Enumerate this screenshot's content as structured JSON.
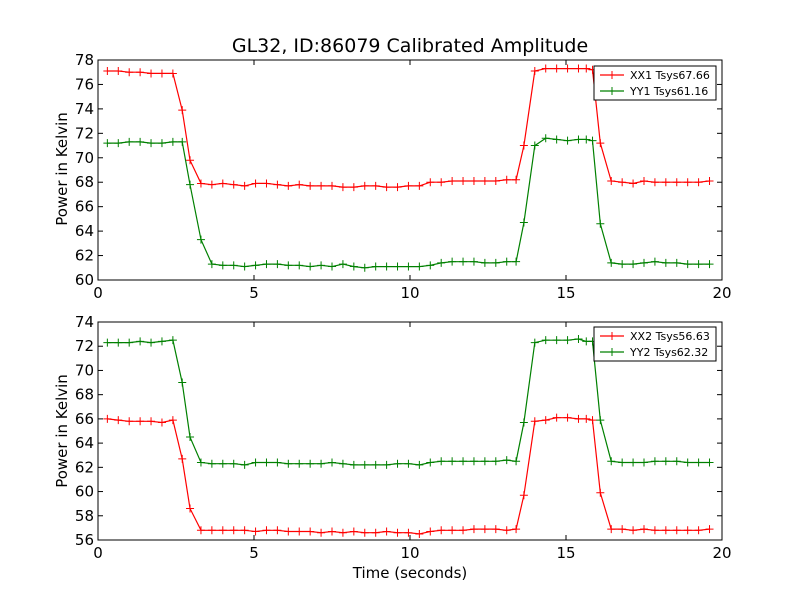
{
  "chart_data": [
    {
      "type": "line",
      "title": "GL32, ID:86079 Calibrated Amplitude",
      "xlabel": "",
      "ylabel": "Power in Kelvin",
      "xlim": [
        0,
        20
      ],
      "ylim": [
        60,
        78
      ],
      "xticks": [
        "0",
        "5",
        "10",
        "15",
        "20"
      ],
      "yticks": [
        "60",
        "62",
        "64",
        "66",
        "68",
        "70",
        "72",
        "74",
        "76",
        "78"
      ],
      "legend_position": "top-right",
      "x": [
        0.3,
        0.65,
        1.0,
        1.35,
        1.7,
        2.05,
        2.4,
        2.7,
        2.95,
        3.3,
        3.65,
        4.0,
        4.35,
        4.7,
        5.05,
        5.4,
        5.75,
        6.1,
        6.45,
        6.8,
        7.15,
        7.5,
        7.85,
        8.2,
        8.55,
        8.9,
        9.25,
        9.6,
        9.95,
        10.3,
        10.65,
        11.0,
        11.35,
        11.7,
        12.05,
        12.4,
        12.75,
        13.1,
        13.4,
        13.65,
        14.0,
        14.35,
        14.7,
        15.05,
        15.4,
        15.65,
        15.85,
        16.1,
        16.45,
        16.8,
        17.15,
        17.5,
        17.85,
        18.2,
        18.55,
        18.9,
        19.25,
        19.6
      ],
      "series": [
        {
          "name": "XX1 Tsys67.66",
          "color": "#ff0000",
          "values": [
            77.1,
            77.1,
            77.0,
            77.0,
            76.9,
            76.9,
            76.9,
            73.9,
            69.8,
            67.9,
            67.8,
            67.9,
            67.8,
            67.7,
            67.9,
            67.9,
            67.8,
            67.7,
            67.8,
            67.7,
            67.7,
            67.7,
            67.6,
            67.6,
            67.7,
            67.7,
            67.6,
            67.6,
            67.7,
            67.7,
            68.0,
            68.0,
            68.1,
            68.1,
            68.1,
            68.1,
            68.1,
            68.2,
            68.2,
            71.0,
            77.1,
            77.3,
            77.3,
            77.3,
            77.3,
            77.3,
            77.2,
            71.2,
            68.1,
            68.0,
            67.9,
            68.1,
            68.0,
            68.0,
            68.0,
            68.0,
            68.0,
            68.1
          ]
        },
        {
          "name": "YY1 Tsys61.16",
          "color": "#008000",
          "values": [
            71.2,
            71.2,
            71.3,
            71.3,
            71.2,
            71.2,
            71.3,
            71.3,
            67.8,
            63.3,
            61.3,
            61.2,
            61.2,
            61.1,
            61.2,
            61.3,
            61.3,
            61.2,
            61.2,
            61.1,
            61.2,
            61.1,
            61.3,
            61.1,
            61.0,
            61.1,
            61.1,
            61.1,
            61.1,
            61.1,
            61.2,
            61.4,
            61.5,
            61.5,
            61.5,
            61.4,
            61.4,
            61.5,
            61.5,
            64.7,
            71.0,
            71.6,
            71.5,
            71.4,
            71.5,
            71.5,
            71.4,
            64.6,
            61.4,
            61.3,
            61.3,
            61.4,
            61.5,
            61.4,
            61.4,
            61.3,
            61.3,
            61.3
          ]
        }
      ]
    },
    {
      "type": "line",
      "title": "",
      "xlabel": "Time (seconds)",
      "ylabel": "Power in Kelvin",
      "xlim": [
        0,
        20
      ],
      "ylim": [
        56,
        74
      ],
      "xticks": [
        "0",
        "5",
        "10",
        "15",
        "20"
      ],
      "yticks": [
        "56",
        "58",
        "60",
        "62",
        "64",
        "66",
        "68",
        "70",
        "72",
        "74"
      ],
      "legend_position": "top-right",
      "x": [
        0.3,
        0.65,
        1.0,
        1.35,
        1.7,
        2.05,
        2.4,
        2.7,
        2.95,
        3.3,
        3.65,
        4.0,
        4.35,
        4.7,
        5.05,
        5.4,
        5.75,
        6.1,
        6.45,
        6.8,
        7.15,
        7.5,
        7.85,
        8.2,
        8.55,
        8.9,
        9.25,
        9.6,
        9.95,
        10.3,
        10.65,
        11.0,
        11.35,
        11.7,
        12.05,
        12.4,
        12.75,
        13.1,
        13.4,
        13.65,
        14.0,
        14.35,
        14.7,
        15.05,
        15.4,
        15.65,
        15.85,
        16.1,
        16.45,
        16.8,
        17.15,
        17.5,
        17.85,
        18.2,
        18.55,
        18.9,
        19.25,
        19.6
      ],
      "series": [
        {
          "name": "XX2 Tsys56.63",
          "color": "#ff0000",
          "values": [
            66.0,
            65.9,
            65.8,
            65.8,
            65.8,
            65.7,
            65.9,
            62.7,
            58.6,
            56.8,
            56.8,
            56.8,
            56.8,
            56.8,
            56.7,
            56.8,
            56.8,
            56.7,
            56.7,
            56.7,
            56.6,
            56.7,
            56.6,
            56.7,
            56.6,
            56.6,
            56.7,
            56.6,
            56.6,
            56.5,
            56.7,
            56.8,
            56.8,
            56.8,
            56.9,
            56.9,
            56.9,
            56.8,
            56.9,
            59.7,
            65.8,
            65.9,
            66.1,
            66.1,
            66.0,
            66.0,
            65.9,
            59.9,
            56.9,
            56.9,
            56.8,
            56.9,
            56.8,
            56.8,
            56.8,
            56.8,
            56.8,
            56.9
          ]
        },
        {
          "name": "YY2 Tsys62.32",
          "color": "#008000",
          "values": [
            72.3,
            72.3,
            72.3,
            72.4,
            72.3,
            72.4,
            72.5,
            69.0,
            64.5,
            62.4,
            62.3,
            62.3,
            62.3,
            62.2,
            62.4,
            62.4,
            62.4,
            62.3,
            62.3,
            62.3,
            62.3,
            62.4,
            62.3,
            62.2,
            62.2,
            62.2,
            62.2,
            62.3,
            62.3,
            62.2,
            62.4,
            62.5,
            62.5,
            62.5,
            62.5,
            62.5,
            62.5,
            62.6,
            62.5,
            65.7,
            72.3,
            72.5,
            72.5,
            72.5,
            72.6,
            72.4,
            72.4,
            65.9,
            62.5,
            62.4,
            62.4,
            62.4,
            62.5,
            62.5,
            62.5,
            62.4,
            62.4,
            62.4
          ]
        }
      ]
    }
  ]
}
